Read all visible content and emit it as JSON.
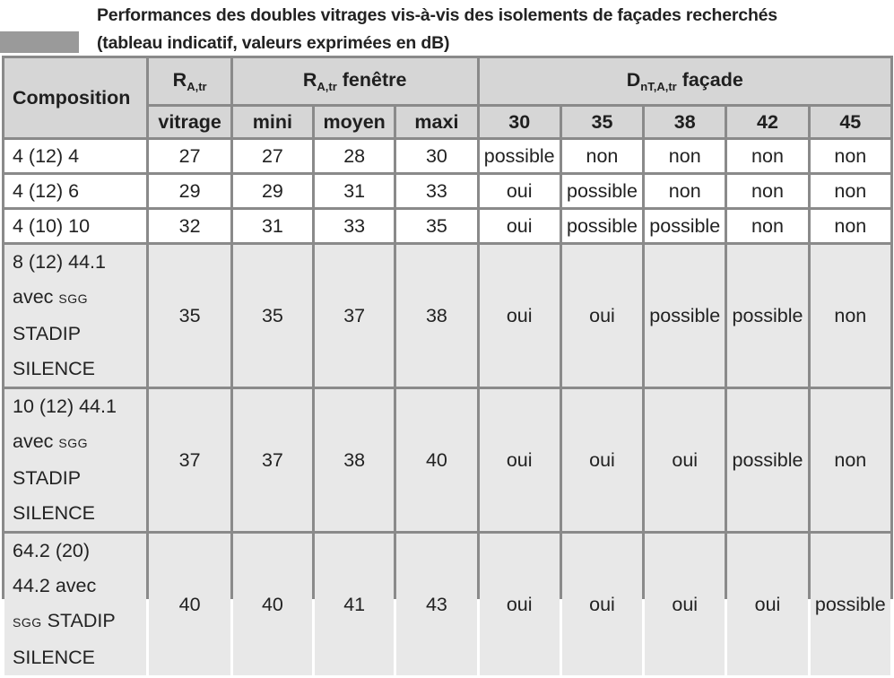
{
  "title": {
    "line1": "Performances des doubles vitrages vis-à-vis des isolements de façades recherchés",
    "line2": "(tableau indicatif, valeurs exprimées en dB)"
  },
  "header": {
    "composition": "Composition",
    "ratr_main": "R",
    "ratr_sub": "A,tr",
    "ratr_fen_main": "R",
    "ratr_fen_sub": "A,tr",
    "ratr_fen_suffix": " fenêtre",
    "dnt_main": "D",
    "dnt_sub": "nT,A,tr",
    "dnt_suffix": " façade",
    "vitrage": "vitrage",
    "mini": "mini",
    "moyen": "moyen",
    "maxi": "maxi",
    "d30": "30",
    "d35": "35",
    "d38": "38",
    "d42": "42",
    "d45": "45"
  },
  "rows": [
    {
      "composition": [
        "4 (12) 4"
      ],
      "vitrage": "27",
      "mini": "27",
      "moyen": "28",
      "maxi": "30",
      "d30": "possible",
      "d35": "non",
      "d38": "non",
      "d42": "non",
      "d45": "non"
    },
    {
      "composition": [
        "4 (12) 6"
      ],
      "vitrage": "29",
      "mini": "29",
      "moyen": "31",
      "maxi": "33",
      "d30": "oui",
      "d35": "possible",
      "d38": "non",
      "d42": "non",
      "d45": "non"
    },
    {
      "composition": [
        "4 (10) 10"
      ],
      "vitrage": "32",
      "mini": "31",
      "moyen": "33",
      "maxi": "35",
      "d30": "oui",
      "d35": "possible",
      "d38": "possible",
      "d42": "non",
      "d45": "non"
    },
    {
      "composition": [
        "8 (12) 44.1",
        "avec SGG STADIP",
        "SILENCE"
      ],
      "vitrage": "35",
      "mini": "35",
      "moyen": "37",
      "maxi": "38",
      "d30": "oui",
      "d35": "oui",
      "d38": "possible",
      "d42": "possible",
      "d45": "non"
    },
    {
      "composition": [
        "10 (12) 44.1",
        "avec SGG STADIP",
        "SILENCE"
      ],
      "vitrage": "37",
      "mini": "37",
      "moyen": "38",
      "maxi": "40",
      "d30": "oui",
      "d35": "oui",
      "d38": "oui",
      "d42": "possible",
      "d45": "non"
    },
    {
      "composition": [
        "64.2 (20)",
        "44.2 avec",
        "SGG STADIP",
        "SILENCE"
      ],
      "vitrage": "40",
      "mini": "40",
      "moyen": "41",
      "maxi": "43",
      "d30": "oui",
      "d35": "oui",
      "d38": "oui",
      "d42": "oui",
      "d45": "possible"
    }
  ]
}
